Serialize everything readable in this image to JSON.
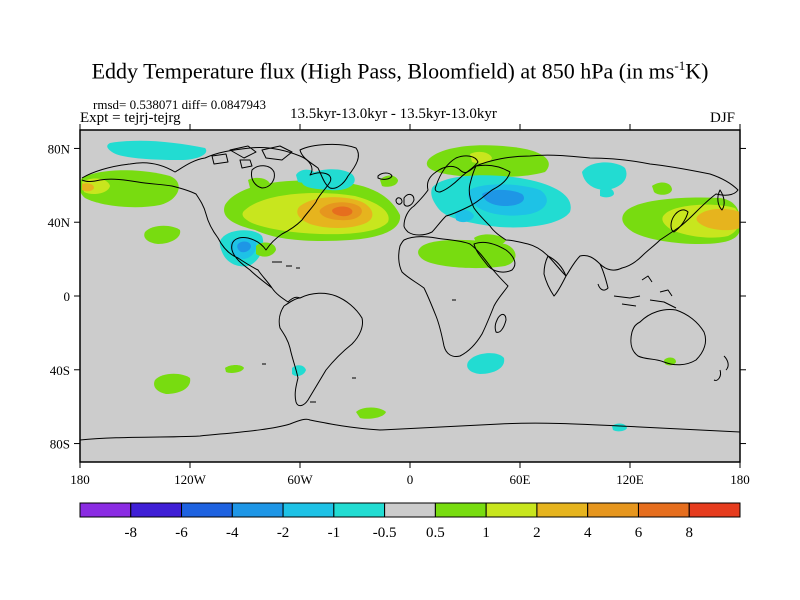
{
  "title": {
    "main": "Eddy Temperature flux (High Pass, Bloomfield) at 850 hPa (in ms",
    "sup": "-1",
    "unit_end": "K)"
  },
  "stats": "rmsd= 0.538071 diff= 0.0847943",
  "expt": "Expt = tejrj-tejrg",
  "period": "13.5kyr-13.0kyr - 13.5kyr-13.0kyr",
  "season": "DJF",
  "axes": {
    "x_ticks": [
      {
        "lon": -180,
        "label": "180"
      },
      {
        "lon": -120,
        "label": "120W"
      },
      {
        "lon": -60,
        "label": "60W"
      },
      {
        "lon": 0,
        "label": "0"
      },
      {
        "lon": 60,
        "label": "60E"
      },
      {
        "lon": 120,
        "label": "120E"
      },
      {
        "lon": 180,
        "label": "180"
      }
    ],
    "y_ticks": [
      {
        "lat": 80,
        "label": "80N"
      },
      {
        "lat": 40,
        "label": "40N"
      },
      {
        "lat": 0,
        "label": "0"
      },
      {
        "lat": -40,
        "label": "40S"
      },
      {
        "lat": -80,
        "label": "80S"
      }
    ],
    "lon_range": [
      -180,
      180
    ],
    "lat_range": [
      -90,
      90
    ]
  },
  "colorbar": {
    "colors": [
      "#8a2be2",
      "#3f1fd6",
      "#1e62e0",
      "#1e96e6",
      "#1ec2e6",
      "#22dcd2",
      "#cccccc",
      "#78dc10",
      "#c8e61e",
      "#e6b41e",
      "#e6961e",
      "#e66e1e",
      "#e63c1e"
    ],
    "labels": [
      "-8",
      "-6",
      "-4",
      "-2",
      "-1",
      "-0.5",
      "0.5",
      "1",
      "2",
      "4",
      "6",
      "8"
    ]
  },
  "chart_data": {
    "type": "heatmap",
    "title": "Eddy Temperature flux (High Pass, Bloomfield) at 850 hPa (in ms-1K)",
    "variable": "eddy temperature flux difference",
    "units": "m s-1 K",
    "season": "DJF",
    "level": "850 hPa",
    "levels": [
      -8,
      -6,
      -4,
      -2,
      -1,
      -0.5,
      0.5,
      1,
      2,
      4,
      6,
      8
    ],
    "xlim": [
      -180,
      180
    ],
    "ylim": [
      -90,
      90
    ],
    "xlabel": "",
    "ylabel": "",
    "anomalies": [
      {
        "name": "north-atlantic-max",
        "lon": -40,
        "lat": 42,
        "peak": 4
      },
      {
        "name": "north-pacific-west",
        "lon": 155,
        "lat": 45,
        "peak": 4
      },
      {
        "name": "north-pacific-east",
        "lon": -170,
        "lat": 55,
        "peak": 2
      },
      {
        "name": "gulf-of-mexico-min",
        "lon": -90,
        "lat": 28,
        "peak": -2
      },
      {
        "name": "eurasia-min",
        "lon": 40,
        "lat": 50,
        "peak": -2
      },
      {
        "name": "south-indian-ocean-min",
        "lon": 40,
        "lat": -32,
        "peak": -1
      },
      {
        "name": "south-pacific-max",
        "lon": -130,
        "lat": -40,
        "peak": 1
      },
      {
        "name": "southern-ocean-max",
        "lon": -30,
        "lat": -65,
        "peak": 1
      }
    ]
  }
}
